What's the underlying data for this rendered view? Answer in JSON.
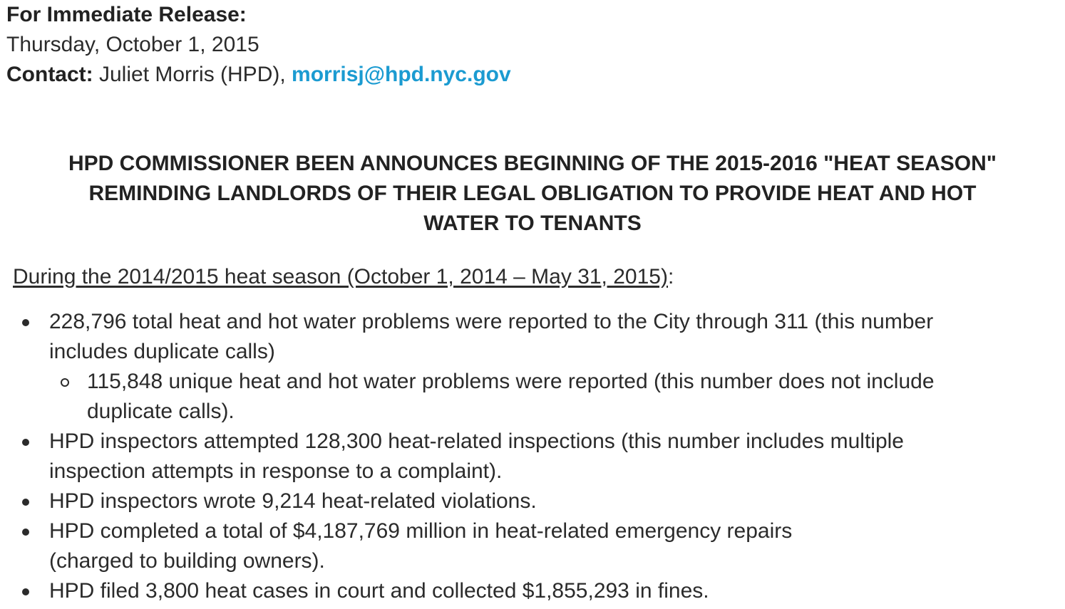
{
  "header": {
    "release_label": "For Immediate Release:",
    "date": "Thursday, October 1, 2015",
    "contact_label": "Contact:",
    "contact_name": "Juliet Morris (HPD),",
    "contact_email": "morrisj@hpd.nyc.gov"
  },
  "headline": {
    "line1": "HPD COMMISSIONER BEEN ANNOUNCES BEGINNING OF THE 2015-2016 \"HEAT SEASON\"",
    "line2": "REMINDING LANDLORDS OF THEIR LEGAL OBLIGATION TO PROVIDE HEAT AND HOT",
    "line3": "WATER TO TENANTS"
  },
  "intro": {
    "underlined": "During the 2014/2015 heat season (October 1, 2014 – May 31, 2015)",
    "suffix": ":"
  },
  "facts": [
    {
      "line1": "228,796 total heat and hot water problems were reported to the City through 311 (this number",
      "line2": "includes duplicate calls)"
    },
    {
      "line1": "115,848 unique heat and hot water problems were reported (this number does not include",
      "line2": "duplicate calls)."
    },
    {
      "line1": "HPD inspectors attempted 128,300 heat-related inspections (this number includes multiple",
      "line2": "inspection attempts in response to a complaint)."
    },
    {
      "line1": "HPD inspectors wrote 9,214 heat-related violations."
    },
    {
      "line1": "HPD completed a total of $4,187,769 million in heat-related emergency repairs",
      "line2": "(charged to building owners)."
    },
    {
      "line1": "HPD filed 3,800 heat cases in court and collected $1,855,293 in fines."
    }
  ],
  "colors": {
    "text": "#2b2b2b",
    "link": "#1b9bd1"
  }
}
